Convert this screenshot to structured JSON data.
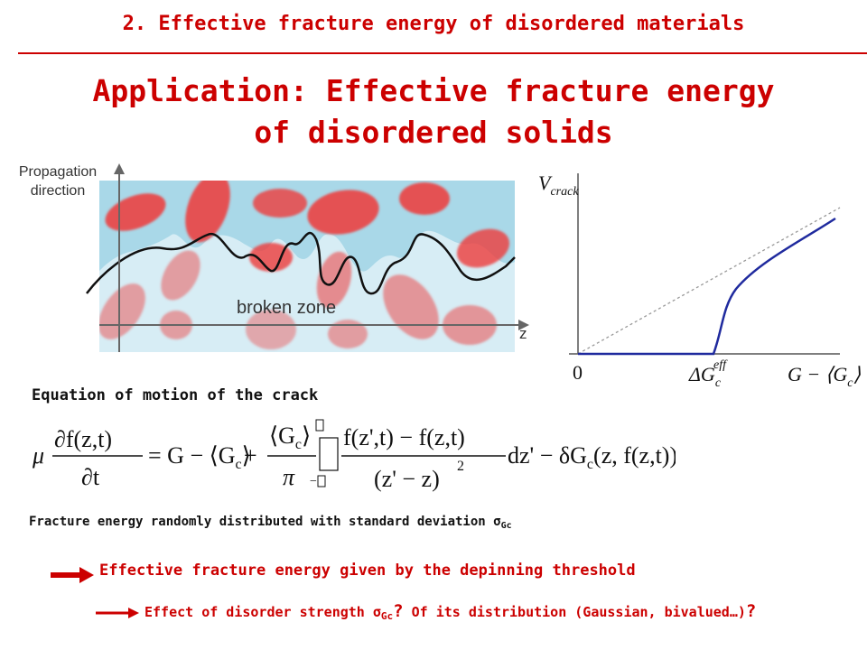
{
  "header": {
    "title": "2. Effective fracture energy of disordered materials"
  },
  "slide": {
    "title_line1": "Application: Effective fracture energy",
    "title_line2": "of disordered solids"
  },
  "left_figure": {
    "propagation_line1": "Propagation",
    "propagation_line2": "direction",
    "zone_label": "broken zone",
    "axis_label": "z"
  },
  "right_figure": {
    "y_label_main": "V",
    "y_label_sub": "crack",
    "origin_label": "0",
    "delta_label": "ΔG",
    "delta_sub": "c",
    "delta_sup": "eff",
    "x_label": "G − ⟨G",
    "x_label_sub": "c",
    "x_label_close": "⟩",
    "colors": {
      "curve": "#1f2a9e",
      "dashed": "#999999"
    }
  },
  "equation": {
    "heading": "Equation of motion of the crack",
    "mu": "μ",
    "lhs_num": "∂f(z,t)",
    "lhs_den": "∂t",
    "eq_rhs1": "= G − ⟨G",
    "sub_c": "c",
    "rangle": "⟩",
    "plus": "+",
    "frac2_num": "⟨G",
    "frac2_close": "⟩",
    "pi": "π",
    "int_up": "",
    "int_low": "−",
    "frac3_num": "f(z',t) − f(z,t)",
    "frac3_den": "(z' − z)",
    "sq": "2",
    "tail": "dz' − δG",
    "tail_args": "(z, f(z,t))"
  },
  "distribution": {
    "text": "Fracture energy randomly distributed with standard deviation σ",
    "sub": "Gc"
  },
  "conclusion": {
    "text": "Effective fracture energy given by the depinning threshold"
  },
  "question": {
    "part1": "Effect of disorder strength σ",
    "sub": "Gc",
    "q1": "?",
    "part2": " Of its distribution (Gaussian, bivalued…)",
    "q2": "?"
  },
  "colors": {
    "accent": "#cc0000",
    "sky": "#a9d8e8",
    "pale": "#d7edf5",
    "blob": "#ee3b3b"
  }
}
